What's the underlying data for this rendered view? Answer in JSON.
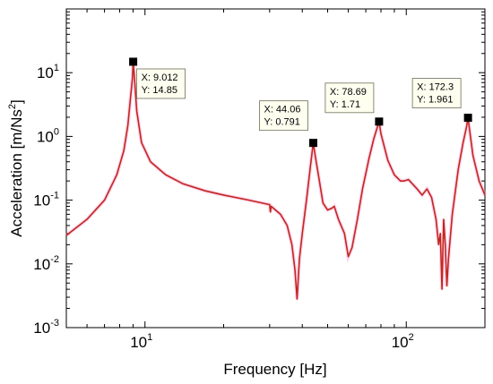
{
  "chart_data": {
    "type": "line",
    "xlabel": "Frequency [Hz]",
    "ylabel_base": "Acceleration [m/Ns",
    "ylabel_sup": "2",
    "ylabel_end": "]",
    "x_scale": "log",
    "y_scale": "log",
    "xlim": [
      5,
      200
    ],
    "ylim": [
      0.001,
      100
    ],
    "grid": false,
    "line_color": "#c0281e",
    "x_ticks": [
      {
        "value": 10,
        "base": "10",
        "exp": "1"
      },
      {
        "value": 100,
        "base": "10",
        "exp": "2"
      }
    ],
    "y_ticks": [
      {
        "value": 0.001,
        "base": "10",
        "exp": "-3"
      },
      {
        "value": 0.01,
        "base": "10",
        "exp": "-2"
      },
      {
        "value": 0.1,
        "base": "10",
        "exp": "-1"
      },
      {
        "value": 1,
        "base": "10",
        "exp": "0"
      },
      {
        "value": 10,
        "base": "10",
        "exp": "1"
      }
    ],
    "series": [
      {
        "x": [
          5,
          6,
          7,
          7.8,
          8.3,
          8.6,
          8.8,
          8.95,
          9.012,
          9.1,
          9.3,
          9.7,
          10.5,
          12,
          14,
          17,
          20,
          25,
          30,
          30.2,
          30.4,
          33,
          35,
          36.5,
          37.5,
          38.2,
          39,
          40,
          41.5,
          43,
          44.06,
          45,
          46.5,
          48,
          50,
          52,
          53,
          55,
          58,
          60,
          62,
          65,
          68,
          72,
          75,
          78.69,
          80,
          85,
          90,
          95,
          98,
          102,
          110,
          115,
          120,
          125,
          130,
          133,
          135,
          137,
          139,
          141,
          143,
          145,
          150,
          158,
          165,
          170,
          172.3,
          175,
          180,
          190,
          200
        ],
        "y": [
          0.028,
          0.05,
          0.1,
          0.25,
          0.6,
          1.5,
          4.0,
          8.0,
          14.85,
          9.0,
          2.5,
          0.8,
          0.4,
          0.25,
          0.18,
          0.14,
          0.12,
          0.1,
          0.085,
          0.065,
          0.08,
          0.06,
          0.04,
          0.02,
          0.008,
          0.0028,
          0.012,
          0.03,
          0.1,
          0.35,
          0.791,
          0.45,
          0.2,
          0.09,
          0.07,
          0.075,
          0.08,
          0.05,
          0.03,
          0.013,
          0.018,
          0.05,
          0.15,
          0.45,
          0.9,
          1.71,
          1.1,
          0.42,
          0.25,
          0.2,
          0.2,
          0.21,
          0.15,
          0.12,
          0.15,
          0.11,
          0.05,
          0.02,
          0.03,
          0.004,
          0.05,
          0.02,
          0.0045,
          0.012,
          0.06,
          0.3,
          0.8,
          1.4,
          1.961,
          1.2,
          0.5,
          0.2,
          0.12
        ]
      }
    ],
    "datatips": [
      {
        "x": 9.012,
        "y": 14.85,
        "xtext": "X: 9.012",
        "ytext": "Y: 14.85"
      },
      {
        "x": 44.06,
        "y": 0.791,
        "xtext": "X: 44.06",
        "ytext": "Y: 0.791"
      },
      {
        "x": 78.69,
        "y": 1.71,
        "xtext": "X: 78.69",
        "ytext": "Y: 1.71"
      },
      {
        "x": 172.3,
        "y": 1.961,
        "xtext": "X: 172.3",
        "ytext": "Y: 1.961"
      }
    ]
  }
}
